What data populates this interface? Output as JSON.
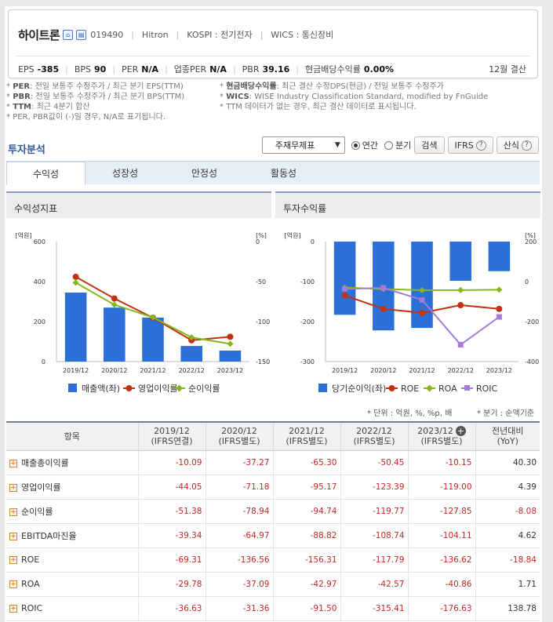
{
  "company": {
    "name": "하이트론",
    "code": "019490",
    "eng_name": "Hitron",
    "market": "KOSPI : 전기전자",
    "wics": "WICS : 통신장비",
    "fiscal": "12월 결산"
  },
  "metrics": [
    {
      "label": "EPS",
      "value": "-385"
    },
    {
      "label": "BPS",
      "value": "90"
    },
    {
      "label": "PER",
      "value": "N/A"
    },
    {
      "label": "업종PER",
      "value": "N/A"
    },
    {
      "label": "PBR",
      "value": "39.16"
    },
    {
      "label": "현금배당수익률",
      "value": "0.00%"
    }
  ],
  "notes": {
    "left": [
      {
        "key": "PER",
        "text": ": 전일 보통주 수정주가 / 최근 분기 EPS(TTM)"
      },
      {
        "key": "PBR",
        "text": ": 전일 보통주 수정주가 / 최근 분기 BPS(TTM)"
      },
      {
        "key": "TTM",
        "text": ": 최근 4분기 합산"
      },
      {
        "key": "",
        "text": "PER, PBR값이 (-)일 경우, N/A로 표기됩니다."
      }
    ],
    "right": [
      {
        "key": "현금배당수익률",
        "text": ": 최근 결산 수정DPS(현금) / 전일 보통주 수정주가"
      },
      {
        "key": "WICS",
        "text": ": WISE Industry Classification Standard, modified by FnGuide"
      },
      {
        "key": "",
        "text": "TTM 데이터가 없는 경우, 최근 결산 데이터로 표시됩니다."
      }
    ]
  },
  "analysis": {
    "title": "투자분석",
    "select_value": "주재무제표",
    "radio_annual": "연간",
    "radio_quarter": "분기",
    "search_button": "검색",
    "ifrs_button": "IFRS",
    "formula_button": "산식"
  },
  "tabs": [
    "수익성",
    "성장성",
    "안정성",
    "활동성"
  ],
  "charts": {
    "left_title": "수익성지표",
    "right_title": "투자수익률"
  },
  "units": {
    "left": "* 단위 : 억원, %, %p, 배",
    "right": "* 분기 : 순액기준"
  },
  "table": {
    "headers": [
      {
        "l1": "항목",
        "l2": ""
      },
      {
        "l1": "2019/12",
        "l2": "(IFRS연결)"
      },
      {
        "l1": "2020/12",
        "l2": "(IFRS별도)"
      },
      {
        "l1": "2021/12",
        "l2": "(IFRS별도)"
      },
      {
        "l1": "2022/12",
        "l2": "(IFRS별도)"
      },
      {
        "l1": "2023/12",
        "l2": "(IFRS별도)"
      },
      {
        "l1": "전년대비",
        "l2": "(YoY)"
      }
    ],
    "rows": [
      {
        "label": "매출총이익률",
        "values": [
          "-10.09",
          "-37.27",
          "-65.30",
          "-50.45",
          "-10.15"
        ],
        "yoy": "40.30"
      },
      {
        "label": "영업이익률",
        "values": [
          "-44.05",
          "-71.18",
          "-95.17",
          "-123.39",
          "-119.00"
        ],
        "yoy": "4.39"
      },
      {
        "label": "순이익률",
        "values": [
          "-51.38",
          "-78.94",
          "-94.74",
          "-119.77",
          "-127.85"
        ],
        "yoy": "-8.08"
      },
      {
        "label": "EBITDA마진율",
        "values": [
          "-39.34",
          "-64.97",
          "-88.82",
          "-108.74",
          "-104.11"
        ],
        "yoy": "4.62"
      },
      {
        "label": "ROE",
        "values": [
          "-69.31",
          "-136.56",
          "-156.31",
          "-117.79",
          "-136.62"
        ],
        "yoy": "-18.84"
      },
      {
        "label": "ROA",
        "values": [
          "-29.78",
          "-37.09",
          "-42.97",
          "-42.57",
          "-40.86"
        ],
        "yoy": "1.71"
      },
      {
        "label": "ROIC",
        "values": [
          "-36.63",
          "-31.36",
          "-91.50",
          "-315.41",
          "-176.63"
        ],
        "yoy": "138.78"
      }
    ]
  },
  "chart_data": [
    {
      "type": "bar",
      "title": "수익성지표",
      "categories": [
        "2019/12",
        "2020/12",
        "2021/12",
        "2022/12",
        "2023/12"
      ],
      "left_axis_label": "[억원]",
      "right_axis_label": "[%]",
      "ylim_left": [
        0,
        600
      ],
      "yticks_left": [
        "0",
        "200",
        "400",
        "600"
      ],
      "ylim_right": [
        -150,
        0
      ],
      "yticks_right": [
        "0",
        "-50",
        "-100",
        "-150"
      ],
      "series": [
        {
          "name": "매출액(좌)",
          "type": "bar",
          "axis": "left",
          "color": "#2c6fd6",
          "values": [
            345,
            270,
            220,
            78,
            55
          ]
        },
        {
          "name": "영업이익률",
          "type": "line",
          "axis": "right",
          "color": "#c2320f",
          "values": [
            -44.05,
            -71.18,
            -95.17,
            -123.39,
            -119.0
          ]
        },
        {
          "name": "순이익률",
          "type": "line",
          "axis": "right",
          "color": "#84b81c",
          "values": [
            -51.38,
            -78.94,
            -94.74,
            -119.77,
            -127.85
          ]
        }
      ],
      "legend": "bottom",
      "grid": false
    },
    {
      "type": "bar",
      "title": "투자수익률",
      "categories": [
        "2019/12",
        "2020/12",
        "2021/12",
        "2022/12",
        "2023/12"
      ],
      "left_axis_label": "[억원]",
      "right_axis_label": "[%]",
      "ylim_left": [
        -300,
        0
      ],
      "yticks_left": [
        "0",
        "-100",
        "-200",
        "-300"
      ],
      "ylim_right": [
        -400,
        200
      ],
      "yticks_right": [
        "200",
        "0",
        "-200",
        "-400"
      ],
      "series": [
        {
          "name": "당기순이익(좌)",
          "type": "bar",
          "axis": "left",
          "color": "#2c6fd6",
          "values": [
            -183,
            -222,
            -216,
            -98,
            -74
          ]
        },
        {
          "name": "ROE",
          "type": "line",
          "axis": "right",
          "color": "#c2320f",
          "values": [
            -69.31,
            -136.56,
            -156.31,
            -117.79,
            -136.62
          ]
        },
        {
          "name": "ROA",
          "type": "line",
          "axis": "right",
          "color": "#84b81c",
          "values": [
            -29.78,
            -37.09,
            -42.97,
            -42.57,
            -40.86
          ]
        },
        {
          "name": "ROIC",
          "type": "line",
          "axis": "right",
          "color": "#a47bd9",
          "values": [
            -36.63,
            -31.36,
            -91.5,
            -315.41,
            -176.63
          ]
        }
      ],
      "legend": "bottom",
      "grid": false
    }
  ]
}
